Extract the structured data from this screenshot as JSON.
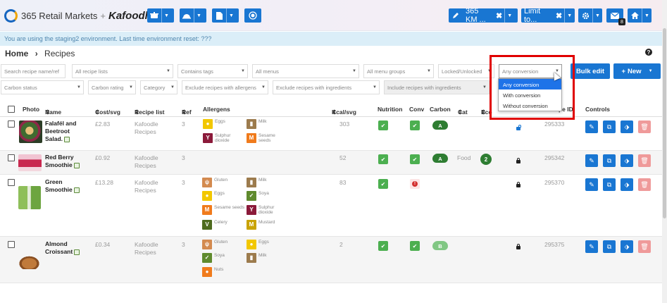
{
  "topbar": {
    "brand": "365 Retail Markets",
    "plus": "+",
    "partner": "Kafoodle",
    "location_label": "365 KM ...",
    "limit_label": "Limit to...",
    "mail_count": "8"
  },
  "env_notice": "You are using the staging2 environment. Last time environment reset: ???",
  "breadcrumb": {
    "home": "Home",
    "sep": "›",
    "current": "Recipes"
  },
  "filters": {
    "search_placeholder": "Search recipe name/ref",
    "recipe_lists": "All recipe lists",
    "contains_tags": "Contains tags",
    "menus": "All menus",
    "menu_groups": "All menu groups",
    "locked": "Locked/Unlocked",
    "conversion": "Any conversion",
    "carbon_status": "Carbon status",
    "carbon_rating": "Carbon rating",
    "category": "Category",
    "exclude_allergens": "Exclude recipes with allergens",
    "exclude_ingredients": "Exclude recipes with ingredients",
    "include_ingredients": "Include recipes with ingredients",
    "bulk_edit": "Bulk edit",
    "new": "New"
  },
  "conversion_options": [
    "Any conversion",
    "With conversion",
    "Without conversion"
  ],
  "columns": {
    "photo": "Photo",
    "name": "Name",
    "cost": "Cost/svg",
    "list": "Recipe list",
    "ref": "Ref",
    "allergens": "Allergens",
    "kcal": "Kcal/svg",
    "nutrition": "Nutrition",
    "conv": "Conv",
    "carbon": "Carbon",
    "cat": "Cat",
    "eco": "Eco",
    "recipe_id": "Recipe ID",
    "controls": "Controls"
  },
  "rows": [
    {
      "name": "Falafél and Beetroot Salad.",
      "cost": "£2.83",
      "list": "Kafoodle Recipes",
      "ref": "3",
      "allergens": [
        "Eggs",
        "Milk",
        "Sulphur dioxide",
        "Sesame seeds"
      ],
      "kcal": "303",
      "carbon": "A",
      "cat": "",
      "eco": "",
      "recipe_id": "295333"
    },
    {
      "name": "Red Berry Smoothie",
      "cost": "£0.92",
      "list": "Kafoodle Recipes",
      "ref": "3",
      "allergens": [],
      "kcal": "52",
      "carbon": "A",
      "cat": "Food",
      "eco": "2",
      "recipe_id": "295342"
    },
    {
      "name": "Green Smoothie",
      "cost": "£13.28",
      "list": "Kafoodle Recipes",
      "ref": "3",
      "allergens": [
        "Gluten",
        "Milk",
        "Eggs",
        "Soya",
        "Sesame seeds",
        "Sulphur dioxide",
        "Celery",
        "Mustard"
      ],
      "kcal": "83",
      "carbon": "",
      "cat": "",
      "eco": "",
      "recipe_id": "295370"
    },
    {
      "name": "Almond Croissant",
      "cost": "£0.34",
      "list": "Kafoodle Recipes",
      "ref": "3",
      "allergens": [
        "Gluten",
        "Eggs",
        "Soya",
        "Milk",
        "Nuts"
      ],
      "kcal": "2",
      "carbon": "B",
      "cat": "",
      "eco": "",
      "recipe_id": "295375"
    }
  ],
  "colors": {
    "primary": "#1976d2",
    "env_bg": "#dbeef8",
    "highlight": "#e00000",
    "green": "#4caf50"
  }
}
